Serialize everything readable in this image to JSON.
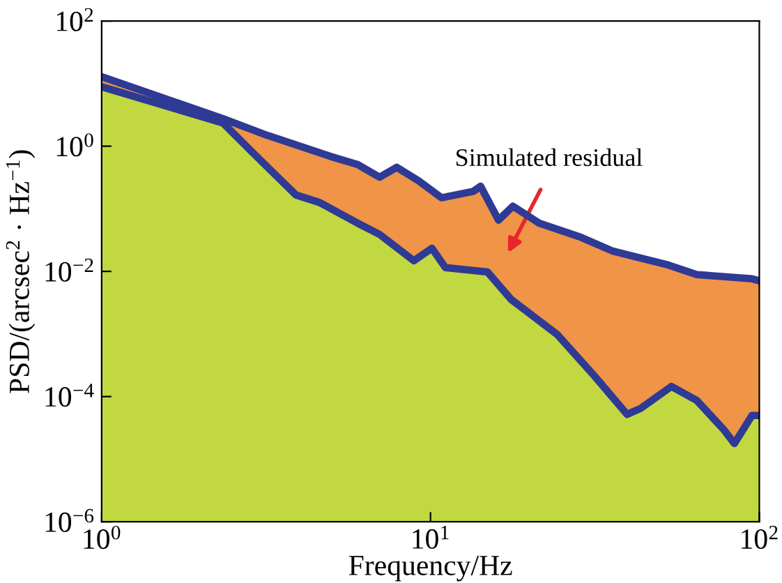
{
  "chart_data": {
    "type": "area",
    "xlabel": "Frequency/Hz",
    "ylabel": "PSD/(arcsec$^{2}$ · Hz$^{−1}$)",
    "log": "xy",
    "xlim": [
      1,
      100
    ],
    "ylim": [
      1e-06,
      100
    ],
    "xticks": [
      {
        "value": 1,
        "label": "10$^{0}$"
      },
      {
        "value": 10,
        "label": "10$^{1}$"
      },
      {
        "value": 100,
        "label": "10$^{2}$"
      }
    ],
    "yticks": [
      {
        "value": 1e-06,
        "label": "10$^{−6}$"
      },
      {
        "value": 0.0001,
        "label": "10$^{−4}$"
      },
      {
        "value": 0.01,
        "label": "10$^{−2}$"
      },
      {
        "value": 1,
        "label": "10$^{0}$"
      },
      {
        "value": 100,
        "label": "10$^{2}$"
      }
    ],
    "grid": false,
    "annotations": [
      "Simulated residual"
    ],
    "series": [
      {
        "color": "#f09447",
        "x": [
          1,
          2.34,
          3.2,
          4.95,
          6.0,
          7.0,
          7.9,
          9.2,
          10.8,
          13.5,
          14.2,
          16.1,
          17.8,
          21.4,
          28.7,
          35.9,
          53,
          64.5,
          95,
          100
        ],
        "values": [
          12.9,
          2.75,
          1.48,
          0.69,
          0.51,
          0.32,
          0.46,
          0.28,
          0.15,
          0.19,
          0.23,
          0.066,
          0.11,
          0.059,
          0.035,
          0.021,
          0.0126,
          0.0089,
          0.0076,
          0.0071
        ]
      },
      {
        "color": "#c2d840",
        "x": [
          1,
          2.34,
          2.9,
          3.9,
          4.6,
          6.0,
          7.0,
          8.9,
          10.1,
          11.1,
          14.9,
          17.6,
          24.3,
          31.6,
          39.6,
          43.6,
          54,
          64.5,
          78,
          84,
          95,
          100
        ],
        "values": [
          8.9,
          2.34,
          0.76,
          0.166,
          0.126,
          0.059,
          0.039,
          0.0148,
          0.0234,
          0.0115,
          0.0098,
          0.00355,
          0.00098,
          0.00021,
          5.2e-05,
          6.5e-05,
          0.000145,
          8.7e-05,
          2.95e-05,
          1.78e-05,
          5e-05,
          5e-05
        ]
      },
      {
        "type": "line",
        "color": "#2e3a94",
        "x": [
          1,
          2.34,
          3.2,
          4.95,
          6.0,
          7.0,
          7.9,
          9.2,
          10.8,
          13.5,
          14.2,
          16.1,
          17.8,
          21.4,
          28.7,
          35.9,
          53,
          64.5,
          95,
          100
        ],
        "values": [
          12.9,
          2.75,
          1.48,
          0.69,
          0.51,
          0.32,
          0.46,
          0.28,
          0.15,
          0.19,
          0.23,
          0.066,
          0.11,
          0.059,
          0.035,
          0.021,
          0.0126,
          0.0089,
          0.0076,
          0.0071
        ]
      },
      {
        "type": "line",
        "color": "#2e3a94",
        "x": [
          1,
          2.34,
          2.9,
          3.9,
          4.6,
          6.0,
          7.0,
          8.9,
          10.1,
          11.1,
          14.9,
          17.6,
          24.3,
          31.6,
          39.6,
          43.6,
          54,
          64.5,
          78,
          84,
          95,
          100
        ],
        "values": [
          8.9,
          2.34,
          0.76,
          0.166,
          0.126,
          0.059,
          0.039,
          0.0148,
          0.0234,
          0.0115,
          0.0098,
          0.00355,
          0.00098,
          0.00021,
          5.2e-05,
          6.5e-05,
          0.000145,
          8.7e-05,
          2.95e-05,
          1.78e-05,
          5e-05,
          5e-05
        ]
      }
    ]
  }
}
